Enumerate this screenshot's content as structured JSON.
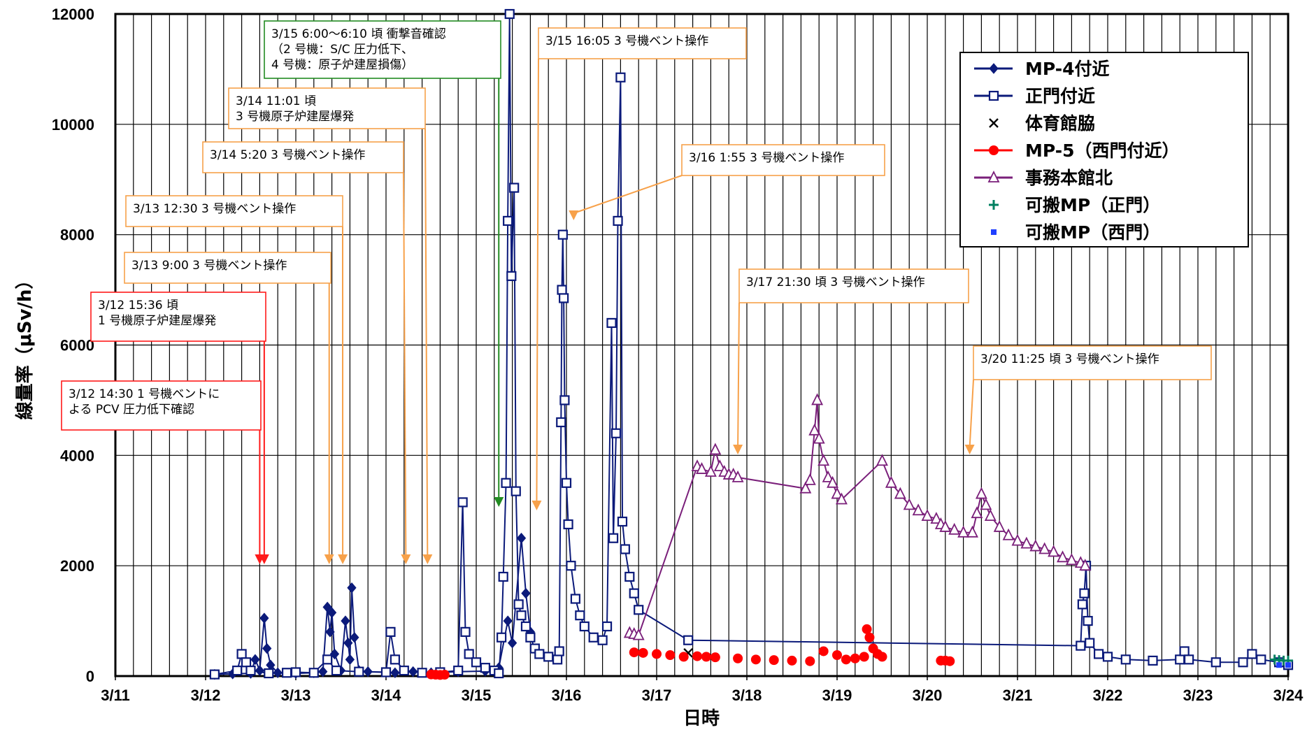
{
  "chart_data": {
    "type": "line",
    "xlabel": "日時",
    "ylabel": "線量率（μSv/h）",
    "ylim": [
      0,
      12000
    ],
    "xlim_days": [
      11,
      24
    ],
    "x_ticks": [
      "3/11",
      "3/12",
      "3/13",
      "3/14",
      "3/15",
      "3/16",
      "3/17",
      "3/18",
      "3/19",
      "3/20",
      "3/21",
      "3/22",
      "3/23",
      "3/24"
    ],
    "y_ticks": [
      "0",
      "2000",
      "4000",
      "6000",
      "8000",
      "10000",
      "12000"
    ],
    "grid": true,
    "legend_position": "top-right",
    "series": [
      {
        "name": "MP-4付近",
        "color": "#0b1a7a",
        "marker": "diamond-filled",
        "points": [
          [
            12.1,
            30
          ],
          [
            12.3,
            40
          ],
          [
            12.5,
            50
          ],
          [
            12.55,
            300
          ],
          [
            12.6,
            100
          ],
          [
            12.65,
            1050
          ],
          [
            12.68,
            500
          ],
          [
            12.72,
            200
          ],
          [
            12.8,
            60
          ],
          [
            13.0,
            50
          ],
          [
            13.2,
            60
          ],
          [
            13.3,
            80
          ],
          [
            13.35,
            1250
          ],
          [
            13.38,
            800
          ],
          [
            13.4,
            1150
          ],
          [
            13.43,
            400
          ],
          [
            13.5,
            100
          ],
          [
            13.55,
            1000
          ],
          [
            13.58,
            600
          ],
          [
            13.6,
            300
          ],
          [
            13.62,
            1600
          ],
          [
            13.65,
            700
          ],
          [
            13.7,
            100
          ],
          [
            13.8,
            80
          ],
          [
            14.0,
            70
          ],
          [
            14.1,
            60
          ],
          [
            14.3,
            80
          ],
          [
            14.5,
            60
          ],
          [
            14.8,
            80
          ],
          [
            15.1,
            90
          ],
          [
            15.25,
            150
          ],
          [
            15.35,
            1000
          ],
          [
            15.4,
            600
          ],
          [
            15.5,
            2500
          ],
          [
            15.55,
            1500
          ],
          [
            15.6,
            800
          ]
        ]
      },
      {
        "name": "正門付近",
        "color": "#0b1a7a",
        "marker": "square-open",
        "points": [
          [
            12.1,
            30
          ],
          [
            12.35,
            100
          ],
          [
            12.4,
            400
          ],
          [
            12.45,
            250
          ],
          [
            12.5,
            100
          ],
          [
            12.7,
            50
          ],
          [
            12.9,
            60
          ],
          [
            13.0,
            70
          ],
          [
            13.2,
            60
          ],
          [
            13.35,
            300
          ],
          [
            13.45,
            100
          ],
          [
            13.7,
            80
          ],
          [
            14.0,
            70
          ],
          [
            14.05,
            800
          ],
          [
            14.1,
            300
          ],
          [
            14.2,
            100
          ],
          [
            14.4,
            60
          ],
          [
            14.6,
            70
          ],
          [
            14.8,
            100
          ],
          [
            14.85,
            3150
          ],
          [
            14.88,
            800
          ],
          [
            14.92,
            400
          ],
          [
            15.0,
            250
          ],
          [
            15.1,
            150
          ],
          [
            15.2,
            100
          ],
          [
            15.25,
            50
          ],
          [
            15.28,
            700
          ],
          [
            15.3,
            1800
          ],
          [
            15.33,
            3500
          ],
          [
            15.35,
            8250
          ],
          [
            15.37,
            12000
          ],
          [
            15.39,
            7250
          ],
          [
            15.42,
            8850
          ],
          [
            15.44,
            3350
          ],
          [
            15.47,
            1300
          ],
          [
            15.5,
            1100
          ],
          [
            15.55,
            900
          ],
          [
            15.6,
            700
          ],
          [
            15.65,
            500
          ],
          [
            15.7,
            400
          ],
          [
            15.8,
            350
          ],
          [
            15.9,
            300
          ],
          [
            15.92,
            450
          ],
          [
            15.94,
            4600
          ],
          [
            15.95,
            7000
          ],
          [
            15.96,
            8000
          ],
          [
            15.97,
            6850
          ],
          [
            15.98,
            5000
          ],
          [
            16.0,
            3500
          ],
          [
            16.02,
            2750
          ],
          [
            16.05,
            2000
          ],
          [
            16.1,
            1400
          ],
          [
            16.15,
            1100
          ],
          [
            16.2,
            900
          ],
          [
            16.3,
            700
          ],
          [
            16.4,
            650
          ],
          [
            16.45,
            900
          ],
          [
            16.5,
            6400
          ],
          [
            16.52,
            2500
          ],
          [
            16.55,
            4400
          ],
          [
            16.57,
            8250
          ],
          [
            16.6,
            10850
          ],
          [
            16.62,
            2800
          ],
          [
            16.65,
            2300
          ],
          [
            16.7,
            1800
          ],
          [
            16.75,
            1500
          ],
          [
            16.8,
            1200
          ],
          [
            17.35,
            650
          ],
          [
            21.7,
            550
          ],
          [
            21.72,
            1300
          ],
          [
            21.74,
            1500
          ],
          [
            21.76,
            2000
          ],
          [
            21.78,
            1000
          ],
          [
            21.8,
            600
          ],
          [
            21.9,
            400
          ],
          [
            22.0,
            350
          ],
          [
            22.2,
            300
          ],
          [
            22.5,
            280
          ],
          [
            22.8,
            300
          ],
          [
            22.85,
            450
          ],
          [
            22.9,
            300
          ],
          [
            23.2,
            250
          ],
          [
            23.5,
            250
          ],
          [
            23.6,
            400
          ],
          [
            23.7,
            300
          ],
          [
            23.9,
            250
          ],
          [
            24.0,
            200
          ]
        ]
      },
      {
        "name": "体育館脇",
        "color": "#000000",
        "marker": "x",
        "points": [
          [
            17.35,
            420
          ]
        ]
      },
      {
        "name": "MP-5（西門付近）",
        "color": "#ff0000",
        "marker": "circle-filled",
        "points": [
          [
            14.5,
            30
          ],
          [
            14.55,
            25
          ],
          [
            14.6,
            20
          ],
          [
            14.65,
            25
          ],
          [
            16.75,
            430
          ],
          [
            16.85,
            420
          ],
          [
            17.0,
            400
          ],
          [
            17.15,
            380
          ],
          [
            17.3,
            350
          ],
          [
            17.45,
            360
          ],
          [
            17.55,
            350
          ],
          [
            17.65,
            340
          ],
          [
            17.9,
            320
          ],
          [
            18.1,
            300
          ],
          [
            18.3,
            290
          ],
          [
            18.5,
            280
          ],
          [
            18.7,
            270
          ],
          [
            18.85,
            450
          ],
          [
            19.0,
            380
          ],
          [
            19.1,
            300
          ],
          [
            19.2,
            320
          ],
          [
            19.3,
            350
          ],
          [
            19.33,
            850
          ],
          [
            19.36,
            700
          ],
          [
            19.4,
            500
          ],
          [
            19.45,
            400
          ],
          [
            19.5,
            350
          ],
          [
            20.15,
            280
          ],
          [
            20.2,
            280
          ],
          [
            20.25,
            270
          ]
        ]
      },
      {
        "name": "事務本館北",
        "color": "#7a1f7a",
        "marker": "triangle-open",
        "points": [
          [
            16.7,
            780
          ],
          [
            16.75,
            760
          ],
          [
            16.8,
            740
          ],
          [
            17.45,
            3800
          ],
          [
            17.5,
            3750
          ],
          [
            17.6,
            3700
          ],
          [
            17.65,
            4100
          ],
          [
            17.7,
            3800
          ],
          [
            17.75,
            3700
          ],
          [
            17.8,
            3650
          ],
          [
            17.85,
            3650
          ],
          [
            17.9,
            3600
          ],
          [
            18.65,
            3400
          ],
          [
            18.7,
            3550
          ],
          [
            18.75,
            4450
          ],
          [
            18.78,
            5000
          ],
          [
            18.8,
            4300
          ],
          [
            18.85,
            3900
          ],
          [
            18.9,
            3600
          ],
          [
            18.95,
            3500
          ],
          [
            19.0,
            3300
          ],
          [
            19.05,
            3200
          ],
          [
            19.5,
            3900
          ],
          [
            19.6,
            3500
          ],
          [
            19.7,
            3300
          ],
          [
            19.8,
            3100
          ],
          [
            19.9,
            3000
          ],
          [
            20.0,
            2900
          ],
          [
            20.1,
            2850
          ],
          [
            20.15,
            2750
          ],
          [
            20.2,
            2700
          ],
          [
            20.3,
            2650
          ],
          [
            20.4,
            2600
          ],
          [
            20.5,
            2600
          ],
          [
            20.55,
            2950
          ],
          [
            20.6,
            3300
          ],
          [
            20.65,
            3100
          ],
          [
            20.7,
            2900
          ],
          [
            20.8,
            2700
          ],
          [
            20.9,
            2550
          ],
          [
            21.0,
            2450
          ],
          [
            21.1,
            2400
          ],
          [
            21.2,
            2350
          ],
          [
            21.3,
            2300
          ],
          [
            21.4,
            2250
          ],
          [
            21.5,
            2150
          ],
          [
            21.6,
            2100
          ],
          [
            21.7,
            2050
          ],
          [
            21.75,
            2000
          ]
        ]
      },
      {
        "name": "可搬MP（正門）",
        "color": "#008060",
        "marker": "plus",
        "points": [
          [
            23.85,
            300
          ],
          [
            23.9,
            290
          ],
          [
            23.95,
            280
          ],
          [
            24.0,
            280
          ]
        ]
      },
      {
        "name": "可搬MP（西門）",
        "color": "#1f3fff",
        "marker": "square-filled-small",
        "points": [
          [
            23.9,
            200
          ],
          [
            24.0,
            200
          ]
        ]
      }
    ],
    "annotations": [
      {
        "lines": [
          "3/15 6:00～6:10 頃  衝撃音確認",
          "（2 号機：S/C 圧力低下、",
          "  4 号機：原子炉建屋損傷）"
        ],
        "x_day": 15.25,
        "color": "#228b22"
      },
      {
        "lines": [
          "3/15 16:05 3 号機ベント操作"
        ],
        "x_day": 15.67,
        "color": "#f7a14a"
      },
      {
        "lines": [
          "3/14 11:01 頃",
          "  3 号機原子炉建屋爆発"
        ],
        "x_day": 14.46,
        "color": "#f7a14a"
      },
      {
        "lines": [
          "3/14 5:20 3 号機ベント操作"
        ],
        "x_day": 14.22,
        "color": "#f7a14a"
      },
      {
        "lines": [
          "3/16 1:55 3 号機ベント操作"
        ],
        "x_day": 16.08,
        "color": "#f7a14a"
      },
      {
        "lines": [
          "3/13 12:30 3 号機ベント操作"
        ],
        "x_day": 13.52,
        "color": "#f7a14a"
      },
      {
        "lines": [
          "3/13 9:00 3 号機ベント操作"
        ],
        "x_day": 13.37,
        "color": "#f7a14a"
      },
      {
        "lines": [
          "3/12 15:36 頃",
          "  1 号機原子炉建屋爆発"
        ],
        "x_day": 12.65,
        "color": "#ff1a1a"
      },
      {
        "lines": [
          "3/12 14:30 1 号機ベントに",
          "よる PCV 圧力低下確認"
        ],
        "x_day": 12.6,
        "color": "#ff1a1a"
      },
      {
        "lines": [
          "3/17 21:30 頃  3 号機ベント操作"
        ],
        "x_day": 17.9,
        "color": "#f7a14a"
      },
      {
        "lines": [
          "3/20 11:25 頃  3 号機ベント操作"
        ],
        "x_day": 20.47,
        "color": "#f7a14a"
      }
    ]
  }
}
